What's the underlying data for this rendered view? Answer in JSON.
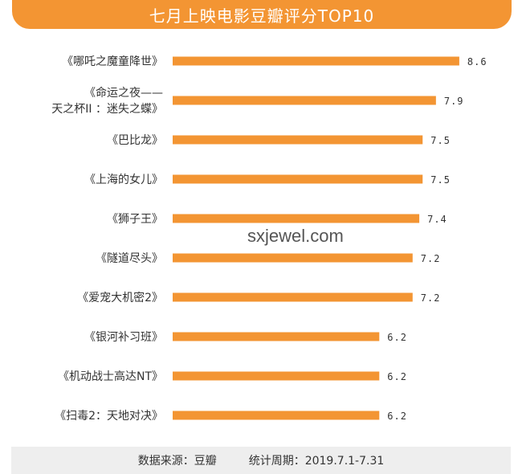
{
  "title": "七月上映电影豆瓣评分TOP10",
  "watermark": "sxjewel.com",
  "footer": {
    "source": "数据来源：豆瓣",
    "period": "统计周期：2019.7.1-7.31"
  },
  "colors": {
    "accent": "#f39533",
    "bar": "#f39533",
    "footer_bg": "#eeeeee"
  },
  "chart_data": {
    "type": "bar",
    "orientation": "horizontal",
    "title": "七月上映电影豆瓣评分TOP10",
    "categories": [
      [
        "《哪吒之魔童降世》"
      ],
      [
        "《命运之夜——",
        "天之杯II ：迷失之蝶》"
      ],
      [
        "《巴比龙》"
      ],
      [
        "《上海的女儿》"
      ],
      [
        "《狮子王》"
      ],
      [
        "《隧道尽头》"
      ],
      [
        "《爱宠大机密2》"
      ],
      [
        "《银河补习班》"
      ],
      [
        "《机动战士高达NT》"
      ],
      [
        "《扫毒2：天地对决》"
      ]
    ],
    "values": [
      8.6,
      7.9,
      7.5,
      7.5,
      7.4,
      7.2,
      7.2,
      6.2,
      6.2,
      6.2
    ],
    "value_labels": [
      "8.6",
      "7.9",
      "7.5",
      "7.5",
      "7.4",
      "7.2",
      "7.2",
      "6.2",
      "6.2",
      "6.2"
    ],
    "xlim": [
      0,
      10
    ],
    "grid": false,
    "legend": "none"
  }
}
